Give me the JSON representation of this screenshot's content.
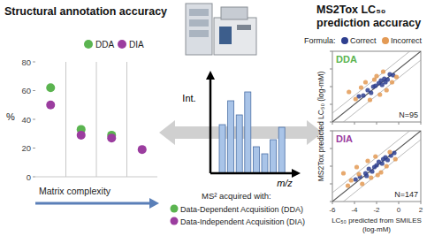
{
  "chart_data": [
    {
      "type": "scatter",
      "title": "Structural annotation accuracy",
      "y_label": "%",
      "x_label": "Matrix complexity",
      "xlim": [
        0,
        4
      ],
      "xticks": [
        1,
        2,
        3
      ],
      "ylim": [
        0,
        80
      ],
      "yticks": [
        0,
        20,
        40,
        60,
        80
      ],
      "grid": true,
      "tick_labels": "y",
      "legend": "top right",
      "series": [
        {
          "name": "DDA",
          "color": "#5bb450",
          "marker": "circle",
          "x": [
            0.5,
            1.5,
            2.5
          ],
          "values": [
            62,
            33,
            29
          ]
        },
        {
          "name": "DIA",
          "color": "#9b3d9f",
          "marker": "circle",
          "x": [
            0.5,
            1.5,
            2.5,
            3.5
          ],
          "values": [
            50,
            29,
            27,
            19
          ]
        }
      ]
    },
    {
      "type": "bar",
      "x_label": "m/z",
      "y_label": "Int.",
      "tick_labels": false,
      "categories": [
        null,
        null,
        null,
        null,
        null,
        null,
        null,
        null
      ],
      "values": [
        55,
        82,
        66,
        92,
        30,
        22,
        38,
        52
      ],
      "color": "#a9c4e8",
      "ylim": [
        0,
        100
      ]
    },
    {
      "type": "scatter",
      "title": "DDA",
      "color": "#5bb450",
      "annotation": "N=95",
      "xlim": [
        -6,
        2
      ],
      "xticks": [
        -6,
        -4,
        -2,
        0,
        2
      ],
      "ylim": [
        -6,
        2
      ],
      "yticks": [
        -6,
        -4,
        -2,
        0,
        2
      ],
      "tick_labels": false,
      "series": [
        {
          "name": "Correct",
          "color": "#2e3f8f",
          "marker": "circle",
          "x": [
            -3.2,
            -2.8,
            -2.5,
            -2.1,
            -1.8,
            -1.5,
            -1.3,
            -1.0,
            -0.8,
            -2.3,
            -1.6,
            -0.5,
            -3.6,
            -1.2
          ],
          "values": [
            -3.0,
            -2.4,
            -2.7,
            -1.9,
            -1.6,
            -1.8,
            -1.1,
            -1.2,
            -0.6,
            -2.0,
            -1.3,
            -0.7,
            -3.1,
            -1.5
          ]
        },
        {
          "name": "Incorrect",
          "color": "#e39a55",
          "marker": "circle",
          "x": [
            -4.5,
            -3.9,
            -3.0,
            -2.6,
            -2.0,
            -1.7,
            -1.1,
            -0.6,
            -0.2,
            -3.4,
            -2.2,
            -1.4
          ],
          "values": [
            -2.6,
            -3.4,
            -1.5,
            -3.5,
            -0.8,
            -2.9,
            -2.4,
            -1.5,
            -0.9,
            -2.1,
            -1.2,
            -0.3
          ]
        }
      ]
    },
    {
      "type": "scatter",
      "title": "DIA",
      "color": "#9b3d9f",
      "annotation": "N=147",
      "x_label": "LC₅₀ predicted from SMILES (log-mM)",
      "y_label": "MS2Tox predicted LC₅₀ (log-mM)",
      "xlim": [
        -6,
        2
      ],
      "xticks": [
        -6,
        -4,
        -2,
        0,
        2
      ],
      "ylim": [
        -6,
        2
      ],
      "yticks": [
        -6,
        -4,
        -2,
        0,
        2
      ],
      "tick_labels": "x",
      "series": [
        {
          "name": "Correct",
          "color": "#2e3f8f",
          "marker": "circle",
          "x": [
            -3.5,
            -3.0,
            -2.7,
            -2.4,
            -2.0,
            -1.8,
            -1.5,
            -1.2,
            -1.0,
            -0.7,
            -2.2,
            -1.4,
            -0.4,
            -3.9,
            -2.9
          ],
          "values": [
            -3.2,
            -2.8,
            -2.3,
            -2.6,
            -1.9,
            -1.5,
            -1.7,
            -1.0,
            -1.3,
            -0.8,
            -2.1,
            -1.2,
            -0.5,
            -3.5,
            -3.1
          ]
        },
        {
          "name": "Incorrect",
          "color": "#e39a55",
          "marker": "circle",
          "x": [
            -5.0,
            -4.3,
            -3.8,
            -3.3,
            -2.8,
            -2.5,
            -2.1,
            -1.6,
            -1.1,
            -0.8,
            -0.3,
            -3.6,
            -1.9,
            -4.6
          ],
          "values": [
            -2.8,
            -3.6,
            -2.1,
            -4.0,
            -1.4,
            -3.3,
            -0.9,
            -2.7,
            -2.0,
            -0.4,
            -1.2,
            -2.9,
            -3.0,
            -4.2
          ]
        }
      ]
    }
  ],
  "texts": {
    "right_title": [
      "MS2Tox LC₅₀",
      "prediction accuracy"
    ],
    "legend_title": "Formula:",
    "ms2_caption": "MS² acquired with:",
    "acquisition": [
      {
        "label": "Data-Dependent Acquisition (DDA)",
        "color": "#5bb450"
      },
      {
        "label": "Data-Independent Acquisition (DIA)",
        "color": "#9b3d9f"
      }
    ]
  }
}
